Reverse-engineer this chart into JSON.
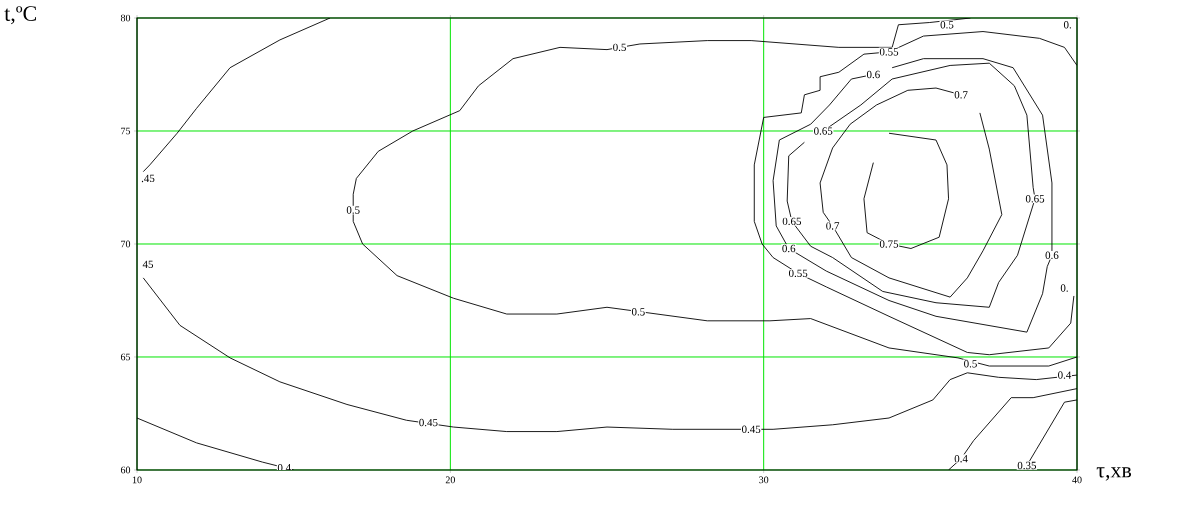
{
  "chart_data": {
    "type": "line",
    "xlabel": "τ,хв",
    "ylabel": "t,ºC",
    "xlim": [
      10,
      40
    ],
    "ylim": [
      60,
      80
    ],
    "xticks": [
      10,
      20,
      30,
      40
    ],
    "yticks": [
      60,
      65,
      70,
      75,
      80
    ],
    "grid": true,
    "marker": "none",
    "line_style": "solid",
    "series": [
      {
        "color": "#000000",
        "x": [
          16.16,
          14.56,
          12.97,
          11.9,
          11.28,
          10.41,
          10.2
        ],
        "values": [
          80,
          79.03,
          77.8,
          76.0,
          74.9,
          73.5,
          73.2
        ]
      },
      {
        "color": "#000000",
        "x": [
          10.2,
          11.37,
          12.97,
          14.56,
          16.7,
          18.6,
          20.1,
          21.8,
          23.4,
          25.0,
          27.1,
          28.9,
          30.3,
          32.2,
          34.0,
          35.4,
          35.95,
          36.5,
          37.5,
          38.7,
          40
        ],
        "values": [
          68.5,
          66.4,
          64.96,
          63.9,
          62.9,
          62.2,
          61.9,
          61.7,
          61.7,
          61.9,
          61.8,
          61.8,
          61.8,
          62.0,
          62.3,
          63.1,
          64.0,
          64.3,
          64.1,
          64.0,
          64.2
        ]
      },
      {
        "color": "#000000",
        "x": [
          10,
          11.9,
          14.0,
          15.0
        ],
        "values": [
          62.3,
          61.2,
          60.35,
          60.0
        ]
      },
      {
        "color": "#000000",
        "x": [
          36.6,
          35.3,
          34.3,
          34.1,
          32.4,
          29.6,
          28.2,
          26.05,
          25.0,
          23.5,
          22.0,
          20.9,
          20.3,
          18.8,
          17.7,
          17.0,
          16.9,
          16.9,
          17.2,
          18.3,
          20.1,
          21.8,
          23.4,
          25.0,
          28.2,
          30.2,
          31.5,
          34.0,
          36.2,
          37.2,
          39.1,
          40
        ],
        "values": [
          80,
          79.8,
          79.7,
          78.7,
          78.7,
          79.0,
          79.0,
          78.85,
          78.6,
          78.7,
          78.2,
          77.0,
          75.9,
          75.0,
          74.1,
          72.9,
          72.2,
          71.0,
          70.0,
          68.6,
          67.6,
          66.9,
          66.9,
          67.2,
          66.6,
          66.6,
          66.7,
          65.4,
          64.96,
          64.6,
          64.6,
          65.0
        ]
      },
      {
        "color": "#000000",
        "x": [
          40,
          39.6,
          38.8,
          37.0,
          35.1,
          34.0,
          33.2,
          32.4,
          31.8,
          31.8,
          31.3,
          31.2,
          30.0,
          29.7,
          29.7,
          29.95,
          30.3,
          31.1,
          32.0,
          34.0,
          36.5,
          37.2,
          39.1,
          39.8,
          39.9
        ],
        "values": [
          77.9,
          78.7,
          79.1,
          79.4,
          79.2,
          78.5,
          78.4,
          77.6,
          77.4,
          76.8,
          76.6,
          75.8,
          75.6,
          73.5,
          71.0,
          70.0,
          69.4,
          68.7,
          68.1,
          66.8,
          65.2,
          65.1,
          65.4,
          66.5,
          67.7
        ]
      },
      {
        "color": "#000000",
        "x": [
          33.5,
          32.8,
          32.1,
          31.5,
          30.5,
          30.3,
          30.4,
          30.8,
          32.0,
          34.0,
          35.5,
          38.4,
          38.9,
          39.05,
          39.2,
          39.2,
          38.9,
          37.96,
          37.0,
          35.1,
          34.1
        ],
        "values": [
          77.5,
          77.3,
          76.15,
          75.3,
          74.6,
          72.8,
          70.8,
          69.8,
          68.8,
          67.5,
          66.8,
          66.1,
          67.8,
          69.0,
          69.5,
          72.7,
          75.7,
          77.8,
          78.2,
          78.2,
          77.8
        ]
      },
      {
        "color": "#000000",
        "x": [
          31.9,
          33.1,
          34.1,
          35.95,
          37.2,
          38.0,
          38.4,
          38.6,
          38.66,
          38.1,
          37.5,
          37.2,
          35.5,
          33.8,
          32.2,
          31.5,
          30.9,
          30.75,
          30.8,
          31.3
        ],
        "values": [
          75.0,
          76.15,
          77.3,
          77.9,
          78.0,
          77.0,
          75.7,
          72.5,
          72.0,
          69.5,
          68.3,
          67.2,
          67.4,
          67.9,
          69.4,
          69.9,
          71.0,
          71.9,
          73.9,
          74.5
        ]
      },
      {
        "color": "#000000",
        "x": [
          36.3,
          35.5,
          34.6,
          33.6,
          32.76,
          32.2,
          31.8,
          31.9,
          32.2,
          32.8,
          34.0,
          35.95,
          36.5,
          37.0,
          37.6,
          37.2,
          36.9
        ],
        "values": [
          76.6,
          76.9,
          76.8,
          76.15,
          75.3,
          74.25,
          72.7,
          71.4,
          70.8,
          69.4,
          68.5,
          67.65,
          68.5,
          69.7,
          71.3,
          74.2,
          75.8
        ]
      },
      {
        "color": "#000000",
        "x": [
          34.0,
          35.5,
          35.85,
          35.9,
          35.6,
          34.7,
          34.0,
          33.3,
          33.2,
          33.5
        ],
        "values": [
          74.9,
          74.6,
          73.5,
          72.0,
          70.3,
          69.8,
          70.0,
          70.5,
          72.0,
          73.6
        ]
      },
      {
        "color": "#000000",
        "x": [
          35.9,
          36.3,
          36.7,
          37.9,
          38.6,
          40
        ],
        "values": [
          60.0,
          60.5,
          61.3,
          63.2,
          63.2,
          63.6
        ]
      },
      {
        "color": "#000000",
        "x": [
          38.4,
          38.7,
          39.6,
          40
        ],
        "values": [
          60.2,
          60.9,
          63.0,
          63.1
        ]
      }
    ],
    "annotations": [
      {
        "text": ".45",
        "x": 10.35,
        "y": 72.9
      },
      {
        "text": "45",
        "x": 10.35,
        "y": 69.1
      },
      {
        "text": "0.5",
        "x": 16.9,
        "y": 71.5
      },
      {
        "text": "0.45",
        "x": 19.3,
        "y": 62.1
      },
      {
        "text": "0.4",
        "x": 14.7,
        "y": 60.1
      },
      {
        "text": "0.5",
        "x": 25.4,
        "y": 78.7
      },
      {
        "text": "0.5",
        "x": 26.0,
        "y": 67.0
      },
      {
        "text": "0.45",
        "x": 29.6,
        "y": 61.8
      },
      {
        "text": "0.5",
        "x": 35.85,
        "y": 79.7
      },
      {
        "text": "0.",
        "x": 39.7,
        "y": 79.7
      },
      {
        "text": "0.55",
        "x": 34.0,
        "y": 78.5
      },
      {
        "text": "0.6",
        "x": 33.5,
        "y": 77.5
      },
      {
        "text": "0.7",
        "x": 36.3,
        "y": 76.6
      },
      {
        "text": "0.65",
        "x": 31.9,
        "y": 75.0
      },
      {
        "text": "0.65",
        "x": 30.9,
        "y": 71.0
      },
      {
        "text": "0.7",
        "x": 32.2,
        "y": 70.8
      },
      {
        "text": "0.75",
        "x": 34.0,
        "y": 70.0
      },
      {
        "text": "0.6",
        "x": 30.8,
        "y": 69.8
      },
      {
        "text": "0.55",
        "x": 31.1,
        "y": 68.7
      },
      {
        "text": "0.65",
        "x": 38.66,
        "y": 72.0
      },
      {
        "text": "0.6",
        "x": 39.2,
        "y": 69.5
      },
      {
        "text": "0.",
        "x": 39.6,
        "y": 68.05
      },
      {
        "text": "0.5",
        "x": 36.6,
        "y": 64.7
      },
      {
        "text": "0.4",
        "x": 39.6,
        "y": 64.2
      },
      {
        "text": "0.4",
        "x": 36.3,
        "y": 60.5
      },
      {
        "text": "0.35",
        "x": 38.4,
        "y": 60.2
      }
    ]
  }
}
